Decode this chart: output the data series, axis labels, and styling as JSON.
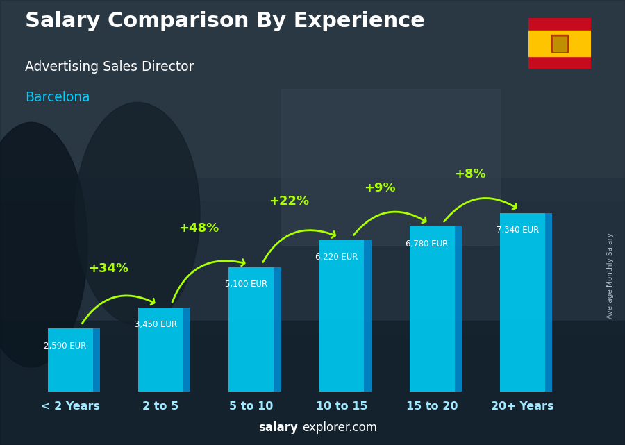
{
  "title": "Salary Comparison By Experience",
  "subtitle": "Advertising Sales Director",
  "city": "Barcelona",
  "categories": [
    "< 2 Years",
    "2 to 5",
    "5 to 10",
    "10 to 15",
    "15 to 20",
    "20+ Years"
  ],
  "values": [
    2590,
    3450,
    5100,
    6220,
    6780,
    7340
  ],
  "labels": [
    "2,590 EUR",
    "3,450 EUR",
    "5,100 EUR",
    "6,220 EUR",
    "6,780 EUR",
    "7,340 EUR"
  ],
  "pct_changes": [
    "+34%",
    "+48%",
    "+22%",
    "+9%",
    "+8%"
  ],
  "bar_color_face": "#00c8f0",
  "bar_color_side": "#0088cc",
  "bar_color_top": "#88e8ff",
  "title_color": "#ffffff",
  "subtitle_color": "#ffffff",
  "city_color": "#00d0ff",
  "label_color": "#ffffff",
  "pct_color": "#aaff00",
  "arrow_color": "#aaff00",
  "watermark_salary": "salary",
  "watermark_rest": "explorer.com",
  "side_label": "Average Monthly Salary",
  "ylim_max": 9500,
  "fig_width": 9.0,
  "fig_height": 6.41,
  "bg_dark": "#1a2a38",
  "bg_mid": "#2d3d4f",
  "photo_blend": 0.38
}
